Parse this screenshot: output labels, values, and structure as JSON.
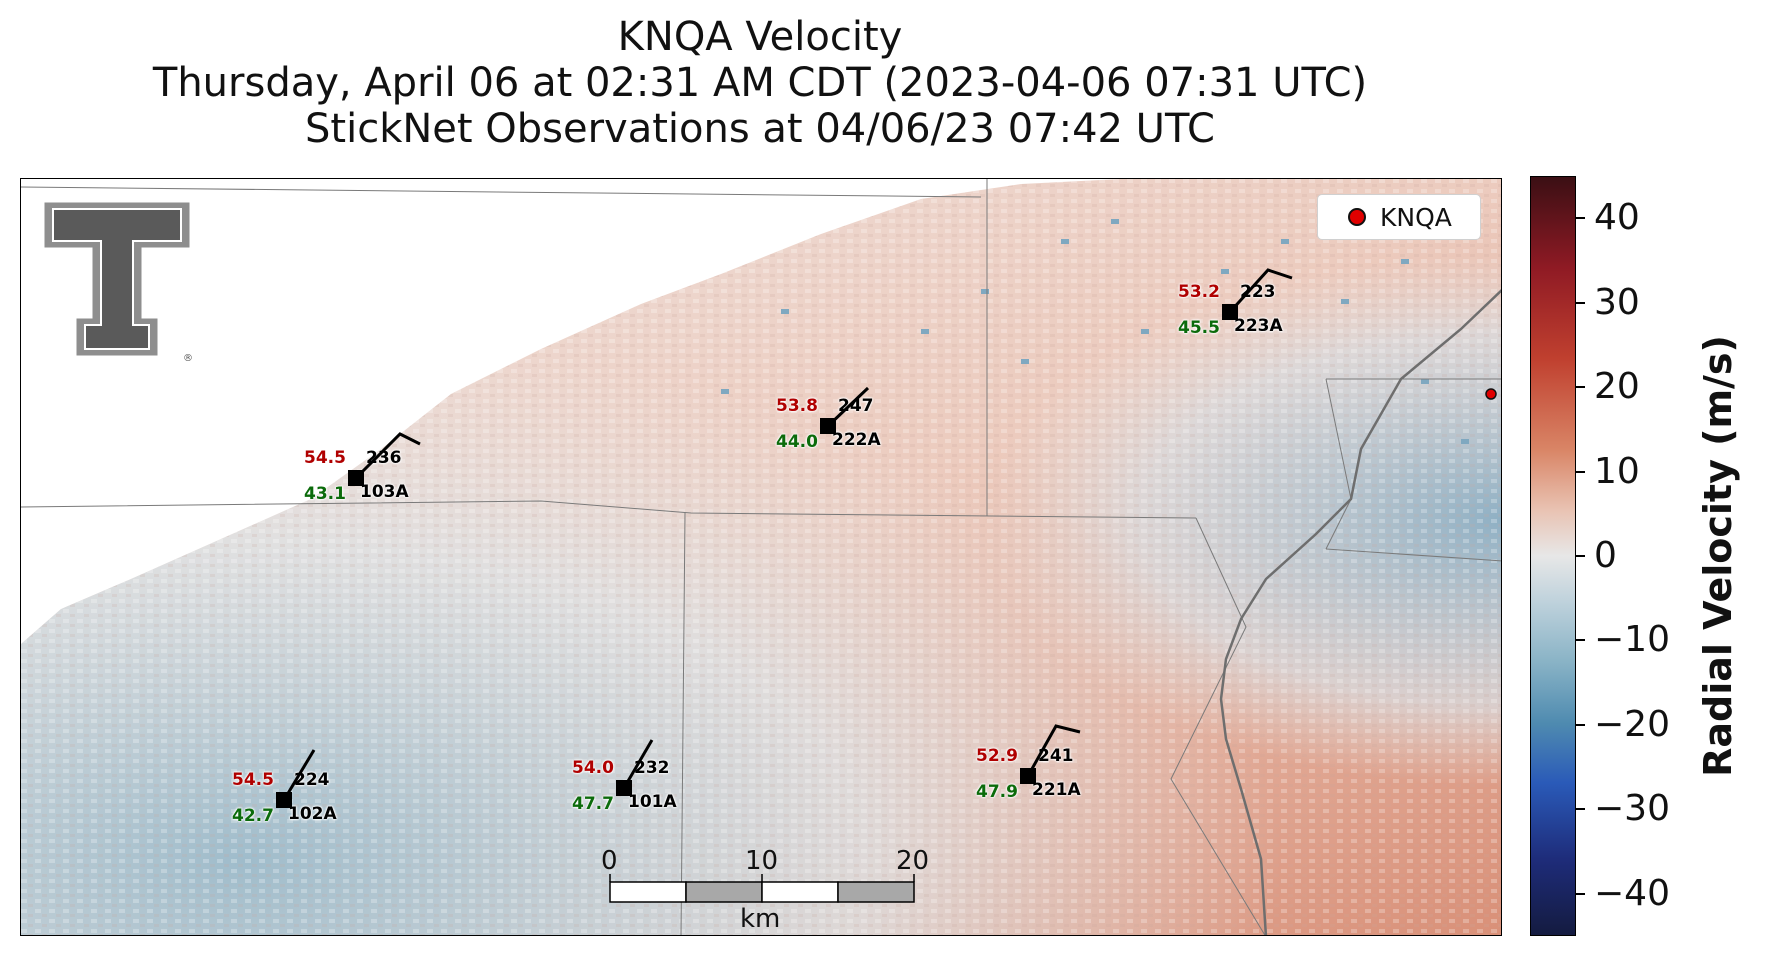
{
  "title": {
    "line1": "KNQA Velocity",
    "line2": "Thursday, April 06 at 02:31 AM CDT (2023-04-06 07:31 UTC)",
    "line3": "StickNet Observations at 04/06/23 07:42 UTC"
  },
  "legend": {
    "label": "KNQA"
  },
  "colorbar": {
    "label": "Radial Velocity (m/s)",
    "ticks": [
      "40",
      "30",
      "20",
      "10",
      "0",
      "−10",
      "−20",
      "−30",
      "−40"
    ],
    "range": [
      -45,
      45
    ]
  },
  "scale_bar": {
    "ticks": [
      "0",
      "10",
      "20"
    ],
    "unit": "km"
  },
  "logo": {
    "icon": "texas-tech-double-t-logo"
  },
  "stations": [
    {
      "id": "103A",
      "temp": "54.5",
      "dew": "43.1",
      "dir": "236"
    },
    {
      "id": "222A",
      "temp": "53.8",
      "dew": "44.0",
      "dir": "247"
    },
    {
      "id": "223A",
      "temp": "53.2",
      "dew": "45.5",
      "dir": "223"
    },
    {
      "id": "102A",
      "temp": "54.5",
      "dew": "42.7",
      "dir": "224"
    },
    {
      "id": "101A",
      "temp": "54.0",
      "dew": "47.7",
      "dir": "232"
    },
    {
      "id": "221A",
      "temp": "52.9",
      "dew": "47.9",
      "dir": "241"
    }
  ],
  "colors": {
    "temp": "#b00000",
    "dew": "#0b6b0b",
    "radar_marker": "#e00000"
  }
}
